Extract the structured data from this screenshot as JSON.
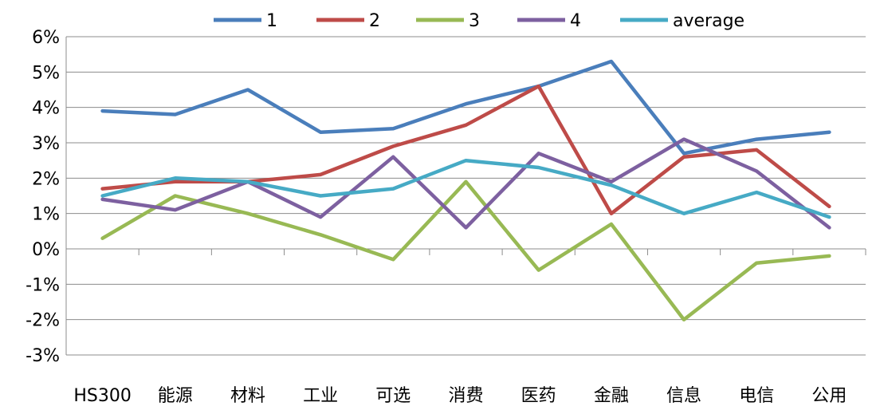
{
  "chart_data": {
    "type": "line",
    "categories": [
      "HS300",
      "能源",
      "材料",
      "工业",
      "可选",
      "消费",
      "医药",
      "金融",
      "信息",
      "电信",
      "公用"
    ],
    "series": [
      {
        "name": "1",
        "color": "#4a7ebb",
        "values": [
          3.9,
          3.8,
          4.5,
          3.3,
          3.4,
          4.1,
          4.6,
          5.3,
          2.7,
          3.1,
          3.3
        ]
      },
      {
        "name": "2",
        "color": "#be4b48",
        "values": [
          1.7,
          1.9,
          1.9,
          2.1,
          2.9,
          3.5,
          4.6,
          1.0,
          2.6,
          2.8,
          1.2
        ]
      },
      {
        "name": "3",
        "color": "#98b954",
        "values": [
          0.3,
          1.5,
          1.0,
          0.4,
          -0.3,
          1.9,
          -0.6,
          0.7,
          -2.0,
          -0.4,
          -0.2
        ]
      },
      {
        "name": "4",
        "color": "#7d60a0",
        "values": [
          1.4,
          1.1,
          1.9,
          0.9,
          2.6,
          0.6,
          2.7,
          1.9,
          3.1,
          2.2,
          0.6
        ]
      },
      {
        "name": "average",
        "color": "#46aac5",
        "values": [
          1.5,
          2.0,
          1.9,
          1.5,
          1.7,
          2.5,
          2.3,
          1.8,
          1.0,
          1.6,
          0.9
        ]
      }
    ],
    "y_ticks": [
      "6%",
      "5%",
      "4%",
      "3%",
      "2%",
      "1%",
      "0%",
      "-1%",
      "-2%",
      "-3%"
    ],
    "ylim": [
      -3,
      6
    ],
    "grid": true,
    "legend": "top"
  }
}
